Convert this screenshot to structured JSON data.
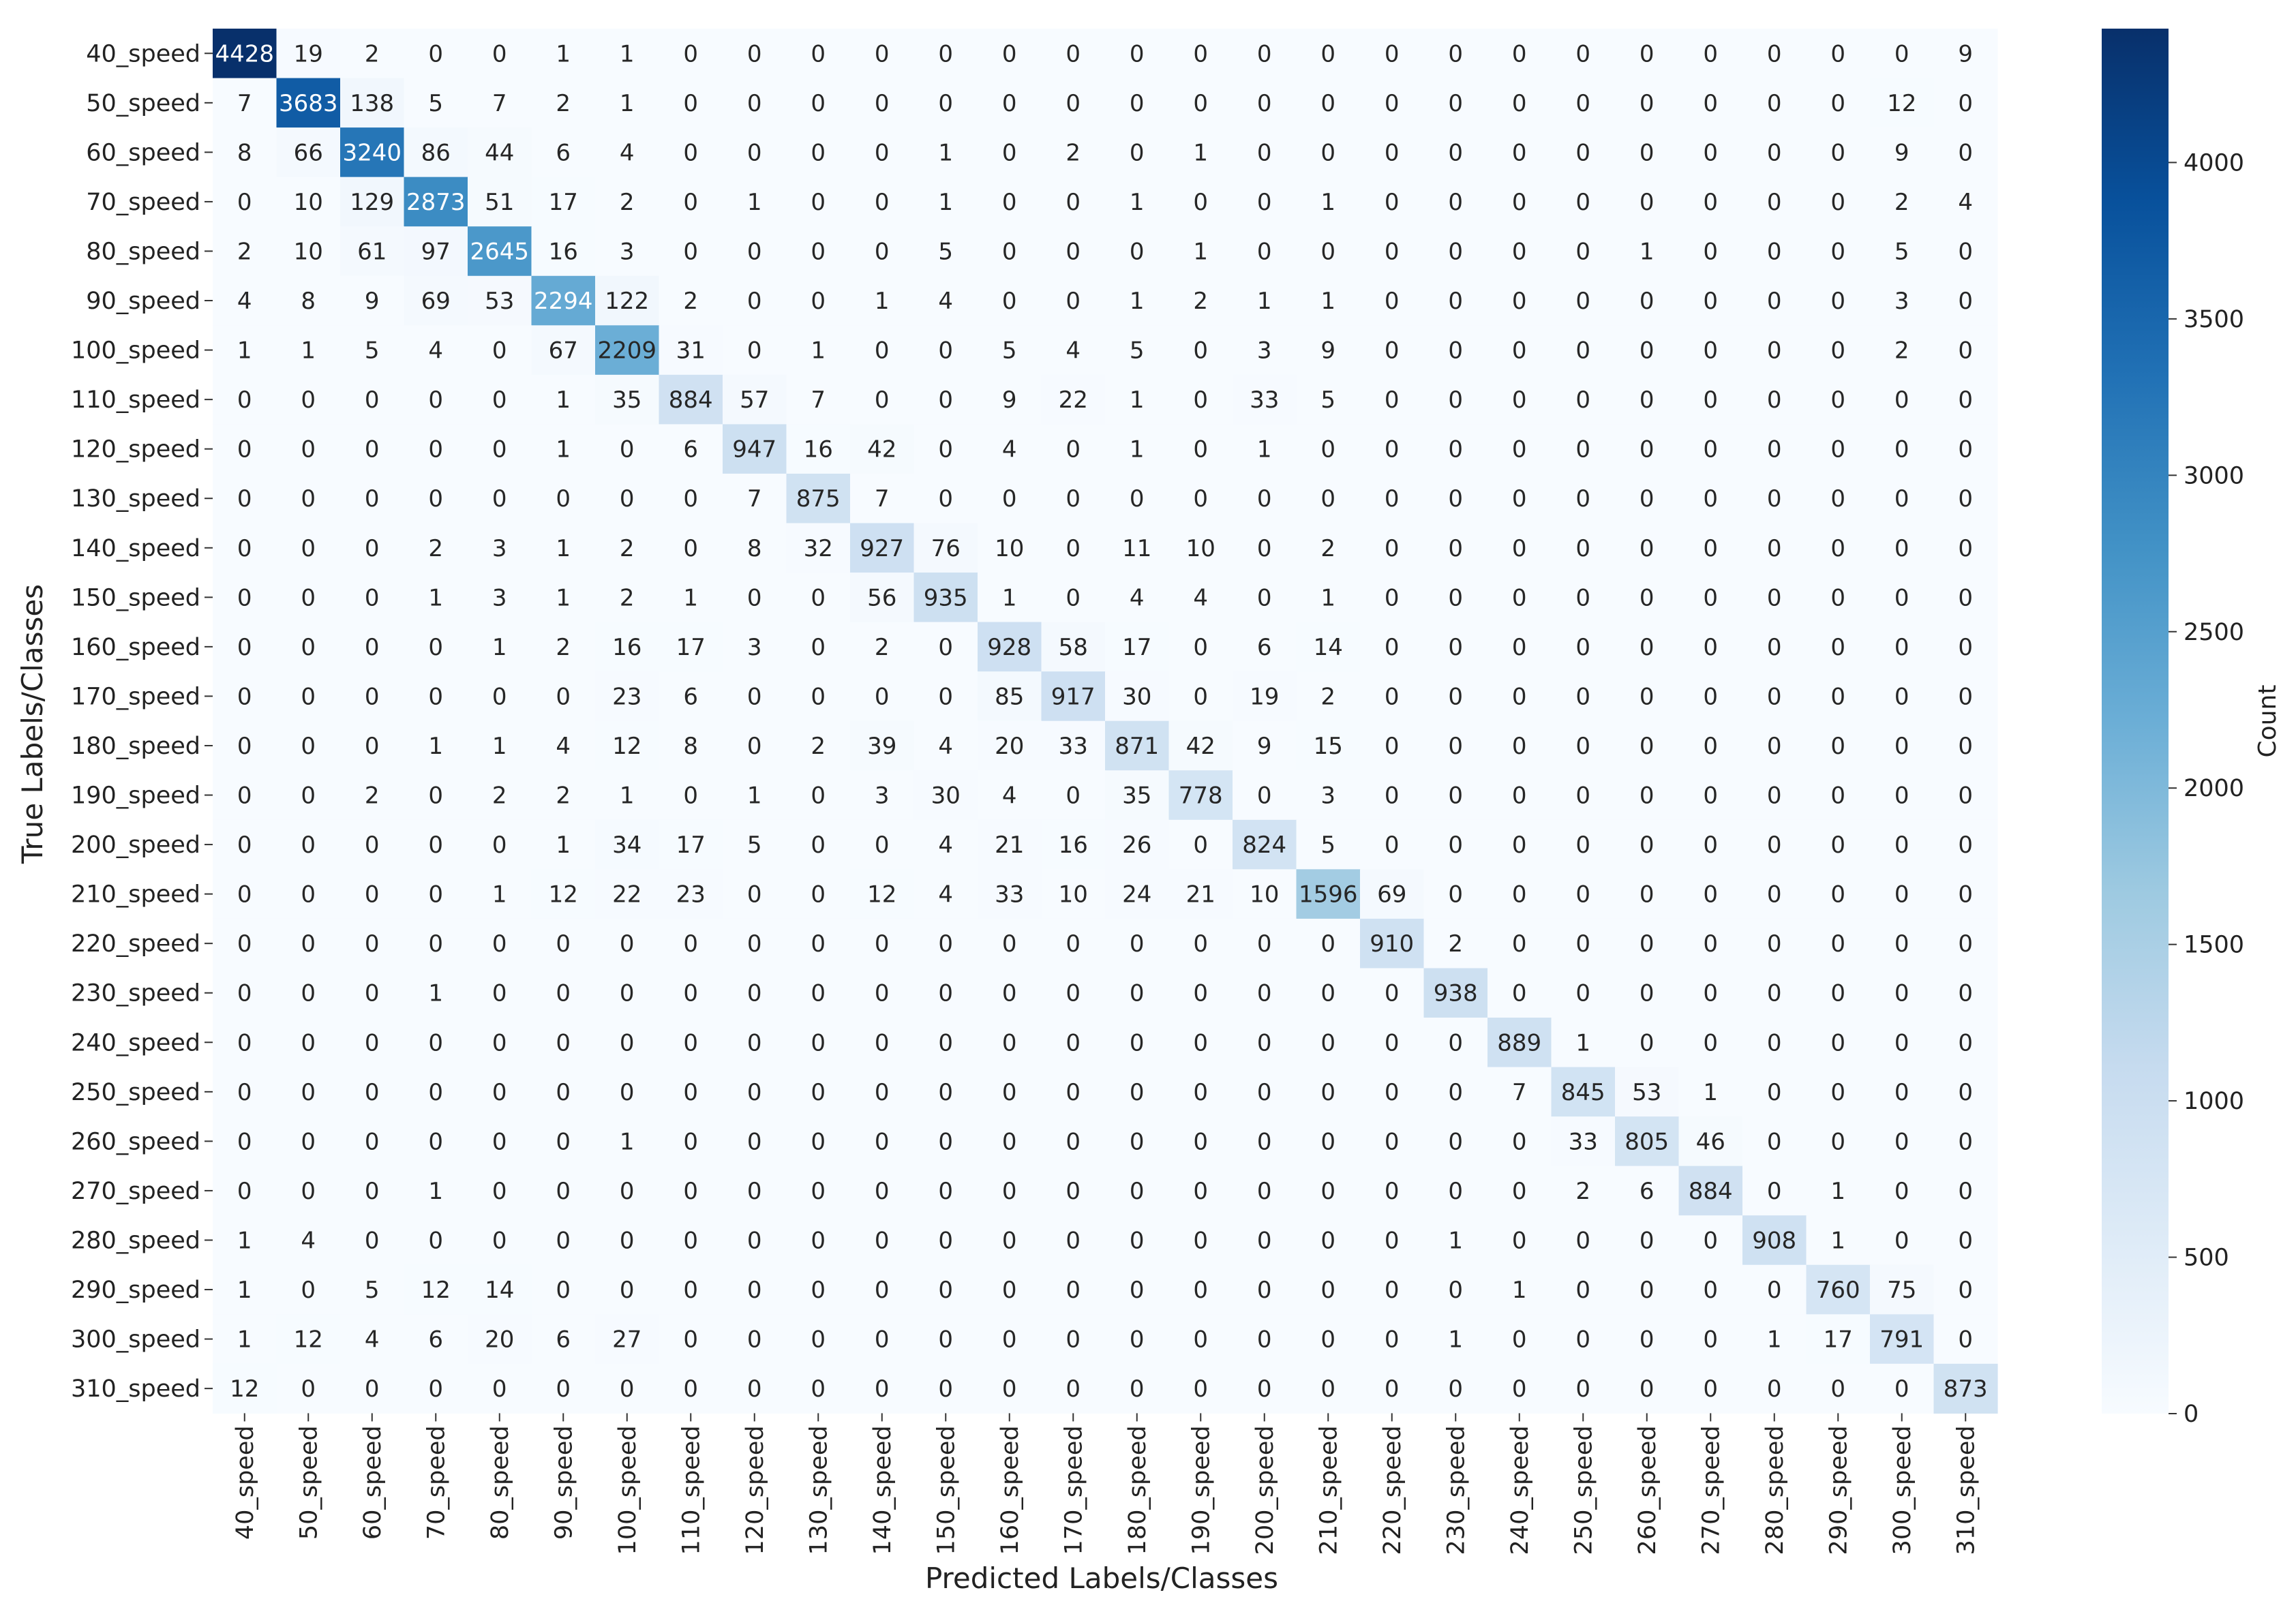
{
  "chart_data": {
    "type": "heatmap",
    "xlabel": "Predicted Labels/Classes",
    "ylabel": "True Labels/Classes",
    "colorbar_label": "Count",
    "colormap": "Blues",
    "color_low": "#f7fbff",
    "color_high": "#08306b",
    "vmin": 0,
    "vmax": 4428,
    "colorbar_ticks": [
      0,
      500,
      1000,
      1500,
      2000,
      2500,
      3000,
      3500,
      4000
    ],
    "x_categories": [
      "40_speed",
      "50_speed",
      "60_speed",
      "70_speed",
      "80_speed",
      "90_speed",
      "100_speed",
      "110_speed",
      "120_speed",
      "130_speed",
      "140_speed",
      "150_speed",
      "160_speed",
      "170_speed",
      "180_speed",
      "190_speed",
      "200_speed",
      "210_speed",
      "220_speed",
      "230_speed",
      "240_speed",
      "250_speed",
      "260_speed",
      "270_speed",
      "280_speed",
      "290_speed",
      "300_speed",
      "310_speed"
    ],
    "y_categories": [
      "40_speed",
      "50_speed",
      "60_speed",
      "70_speed",
      "80_speed",
      "90_speed",
      "100_speed",
      "110_speed",
      "120_speed",
      "130_speed",
      "140_speed",
      "150_speed",
      "160_speed",
      "170_speed",
      "180_speed",
      "190_speed",
      "200_speed",
      "210_speed",
      "220_speed",
      "230_speed",
      "240_speed",
      "250_speed",
      "260_speed",
      "270_speed",
      "280_speed",
      "290_speed",
      "300_speed",
      "310_speed"
    ],
    "values": [
      [
        4428,
        19,
        2,
        0,
        0,
        1,
        1,
        0,
        0,
        0,
        0,
        0,
        0,
        0,
        0,
        0,
        0,
        0,
        0,
        0,
        0,
        0,
        0,
        0,
        0,
        0,
        0,
        9
      ],
      [
        7,
        3683,
        138,
        5,
        7,
        2,
        1,
        0,
        0,
        0,
        0,
        0,
        0,
        0,
        0,
        0,
        0,
        0,
        0,
        0,
        0,
        0,
        0,
        0,
        0,
        0,
        12,
        0
      ],
      [
        8,
        66,
        3240,
        86,
        44,
        6,
        4,
        0,
        0,
        0,
        0,
        1,
        0,
        2,
        0,
        1,
        0,
        0,
        0,
        0,
        0,
        0,
        0,
        0,
        0,
        0,
        9,
        0
      ],
      [
        0,
        10,
        129,
        2873,
        51,
        17,
        2,
        0,
        1,
        0,
        0,
        1,
        0,
        0,
        1,
        0,
        0,
        1,
        0,
        0,
        0,
        0,
        0,
        0,
        0,
        0,
        2,
        4
      ],
      [
        2,
        10,
        61,
        97,
        2645,
        16,
        3,
        0,
        0,
        0,
        0,
        5,
        0,
        0,
        0,
        1,
        0,
        0,
        0,
        0,
        0,
        0,
        1,
        0,
        0,
        0,
        5,
        0
      ],
      [
        4,
        8,
        9,
        69,
        53,
        2294,
        122,
        2,
        0,
        0,
        1,
        4,
        0,
        0,
        1,
        2,
        1,
        1,
        0,
        0,
        0,
        0,
        0,
        0,
        0,
        0,
        3,
        0
      ],
      [
        1,
        1,
        5,
        4,
        0,
        67,
        2209,
        31,
        0,
        1,
        0,
        0,
        5,
        4,
        5,
        0,
        3,
        9,
        0,
        0,
        0,
        0,
        0,
        0,
        0,
        0,
        2,
        0
      ],
      [
        0,
        0,
        0,
        0,
        0,
        1,
        35,
        884,
        57,
        7,
        0,
        0,
        9,
        22,
        1,
        0,
        33,
        5,
        0,
        0,
        0,
        0,
        0,
        0,
        0,
        0,
        0,
        0
      ],
      [
        0,
        0,
        0,
        0,
        0,
        1,
        0,
        6,
        947,
        16,
        42,
        0,
        4,
        0,
        1,
        0,
        1,
        0,
        0,
        0,
        0,
        0,
        0,
        0,
        0,
        0,
        0,
        0
      ],
      [
        0,
        0,
        0,
        0,
        0,
        0,
        0,
        0,
        7,
        875,
        7,
        0,
        0,
        0,
        0,
        0,
        0,
        0,
        0,
        0,
        0,
        0,
        0,
        0,
        0,
        0,
        0,
        0
      ],
      [
        0,
        0,
        0,
        2,
        3,
        1,
        2,
        0,
        8,
        32,
        927,
        76,
        10,
        0,
        11,
        10,
        0,
        2,
        0,
        0,
        0,
        0,
        0,
        0,
        0,
        0,
        0,
        0
      ],
      [
        0,
        0,
        0,
        1,
        3,
        1,
        2,
        1,
        0,
        0,
        56,
        935,
        1,
        0,
        4,
        4,
        0,
        1,
        0,
        0,
        0,
        0,
        0,
        0,
        0,
        0,
        0,
        0
      ],
      [
        0,
        0,
        0,
        0,
        1,
        2,
        16,
        17,
        3,
        0,
        2,
        0,
        928,
        58,
        17,
        0,
        6,
        14,
        0,
        0,
        0,
        0,
        0,
        0,
        0,
        0,
        0,
        0
      ],
      [
        0,
        0,
        0,
        0,
        0,
        0,
        23,
        6,
        0,
        0,
        0,
        0,
        85,
        917,
        30,
        0,
        19,
        2,
        0,
        0,
        0,
        0,
        0,
        0,
        0,
        0,
        0,
        0
      ],
      [
        0,
        0,
        0,
        1,
        1,
        4,
        12,
        8,
        0,
        2,
        39,
        4,
        20,
        33,
        871,
        42,
        9,
        15,
        0,
        0,
        0,
        0,
        0,
        0,
        0,
        0,
        0,
        0
      ],
      [
        0,
        0,
        2,
        0,
        2,
        2,
        1,
        0,
        1,
        0,
        3,
        30,
        4,
        0,
        35,
        778,
        0,
        3,
        0,
        0,
        0,
        0,
        0,
        0,
        0,
        0,
        0,
        0
      ],
      [
        0,
        0,
        0,
        0,
        0,
        1,
        34,
        17,
        5,
        0,
        0,
        4,
        21,
        16,
        26,
        0,
        824,
        5,
        0,
        0,
        0,
        0,
        0,
        0,
        0,
        0,
        0,
        0
      ],
      [
        0,
        0,
        0,
        0,
        1,
        12,
        22,
        23,
        0,
        0,
        12,
        4,
        33,
        10,
        24,
        21,
        10,
        1596,
        69,
        0,
        0,
        0,
        0,
        0,
        0,
        0,
        0,
        0
      ],
      [
        0,
        0,
        0,
        0,
        0,
        0,
        0,
        0,
        0,
        0,
        0,
        0,
        0,
        0,
        0,
        0,
        0,
        0,
        910,
        2,
        0,
        0,
        0,
        0,
        0,
        0,
        0,
        0
      ],
      [
        0,
        0,
        0,
        1,
        0,
        0,
        0,
        0,
        0,
        0,
        0,
        0,
        0,
        0,
        0,
        0,
        0,
        0,
        0,
        938,
        0,
        0,
        0,
        0,
        0,
        0,
        0,
        0
      ],
      [
        0,
        0,
        0,
        0,
        0,
        0,
        0,
        0,
        0,
        0,
        0,
        0,
        0,
        0,
        0,
        0,
        0,
        0,
        0,
        0,
        889,
        1,
        0,
        0,
        0,
        0,
        0,
        0
      ],
      [
        0,
        0,
        0,
        0,
        0,
        0,
        0,
        0,
        0,
        0,
        0,
        0,
        0,
        0,
        0,
        0,
        0,
        0,
        0,
        0,
        7,
        845,
        53,
        1,
        0,
        0,
        0,
        0
      ],
      [
        0,
        0,
        0,
        0,
        0,
        0,
        1,
        0,
        0,
        0,
        0,
        0,
        0,
        0,
        0,
        0,
        0,
        0,
        0,
        0,
        0,
        33,
        805,
        46,
        0,
        0,
        0,
        0
      ],
      [
        0,
        0,
        0,
        1,
        0,
        0,
        0,
        0,
        0,
        0,
        0,
        0,
        0,
        0,
        0,
        0,
        0,
        0,
        0,
        0,
        0,
        2,
        6,
        884,
        0,
        1,
        0,
        0
      ],
      [
        1,
        4,
        0,
        0,
        0,
        0,
        0,
        0,
        0,
        0,
        0,
        0,
        0,
        0,
        0,
        0,
        0,
        0,
        0,
        1,
        0,
        0,
        0,
        0,
        908,
        1,
        0,
        0
      ],
      [
        1,
        0,
        5,
        12,
        14,
        0,
        0,
        0,
        0,
        0,
        0,
        0,
        0,
        0,
        0,
        0,
        0,
        0,
        0,
        0,
        1,
        0,
        0,
        0,
        0,
        760,
        75,
        0
      ],
      [
        1,
        12,
        4,
        6,
        20,
        6,
        27,
        0,
        0,
        0,
        0,
        0,
        0,
        0,
        0,
        0,
        0,
        0,
        0,
        1,
        0,
        0,
        0,
        0,
        1,
        17,
        791,
        0
      ],
      [
        12,
        0,
        0,
        0,
        0,
        0,
        0,
        0,
        0,
        0,
        0,
        0,
        0,
        0,
        0,
        0,
        0,
        0,
        0,
        0,
        0,
        0,
        0,
        0,
        0,
        0,
        0,
        873
      ]
    ]
  }
}
